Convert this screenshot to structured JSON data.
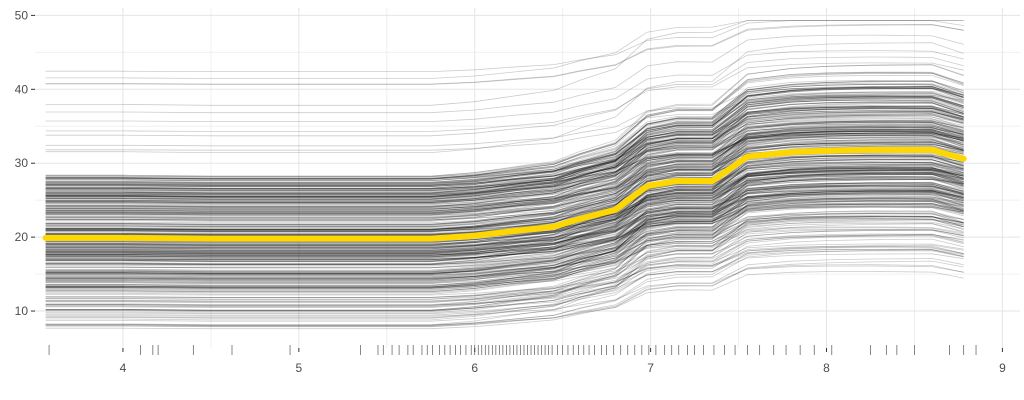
{
  "chart_data": {
    "type": "line",
    "title": "",
    "xlabel": "",
    "ylabel": "",
    "xlim": [
      3.5,
      9.1
    ],
    "ylim": [
      5,
      51
    ],
    "x_ticks": [
      4,
      5,
      6,
      7,
      8,
      9
    ],
    "y_ticks": [
      10,
      20,
      30,
      40,
      50
    ],
    "x_tick_labels": [
      "4",
      "5",
      "6",
      "7",
      "8",
      "9"
    ],
    "y_tick_labels": [
      "10",
      "20",
      "30",
      "40",
      "50"
    ],
    "grid": true,
    "legend": "none",
    "ice_line_count": 400,
    "x": [
      3.56,
      4.0,
      4.5,
      5.0,
      5.25,
      5.5,
      5.75,
      6.0,
      6.25,
      6.45,
      6.6,
      6.8,
      6.98,
      7.15,
      7.35,
      7.55,
      7.8,
      8.0,
      8.25,
      8.45,
      8.6,
      8.78
    ],
    "series": [
      {
        "values": [
          19.9,
          19.9,
          19.8,
          19.8,
          19.8,
          19.8,
          19.8,
          20.2,
          20.9,
          21.4,
          22.5,
          23.7,
          26.9,
          27.6,
          27.6,
          30.9,
          31.5,
          31.7,
          31.8,
          31.8,
          31.8,
          30.6
        ]
      }
    ],
    "rug_x": [
      3.58,
      4.1,
      4.17,
      4.2,
      4.4,
      4.62,
      4.95,
      5.35,
      5.45,
      5.48,
      5.53,
      5.57,
      5.62,
      5.65,
      5.7,
      5.73,
      5.76,
      5.8,
      5.83,
      5.86,
      5.89,
      5.92,
      5.95,
      5.98,
      6.0,
      6.02,
      6.04,
      6.06,
      6.08,
      6.1,
      6.12,
      6.14,
      6.16,
      6.18,
      6.2,
      6.22,
      6.24,
      6.26,
      6.28,
      6.3,
      6.32,
      6.34,
      6.36,
      6.38,
      6.4,
      6.42,
      6.44,
      6.47,
      6.5,
      6.53,
      6.56,
      6.59,
      6.62,
      6.65,
      6.68,
      6.72,
      6.75,
      6.79,
      6.83,
      6.87,
      6.91,
      6.95,
      6.99,
      7.03,
      7.08,
      7.12,
      7.16,
      7.21,
      7.25,
      7.3,
      7.36,
      7.42,
      7.48,
      7.55,
      7.62,
      7.7,
      7.77,
      7.85,
      7.93,
      8.03,
      8.25,
      8.34,
      8.4,
      8.5,
      8.7,
      8.78,
      8.85
    ],
    "highlight_color": "#ffd700",
    "line_color": "#000000"
  }
}
